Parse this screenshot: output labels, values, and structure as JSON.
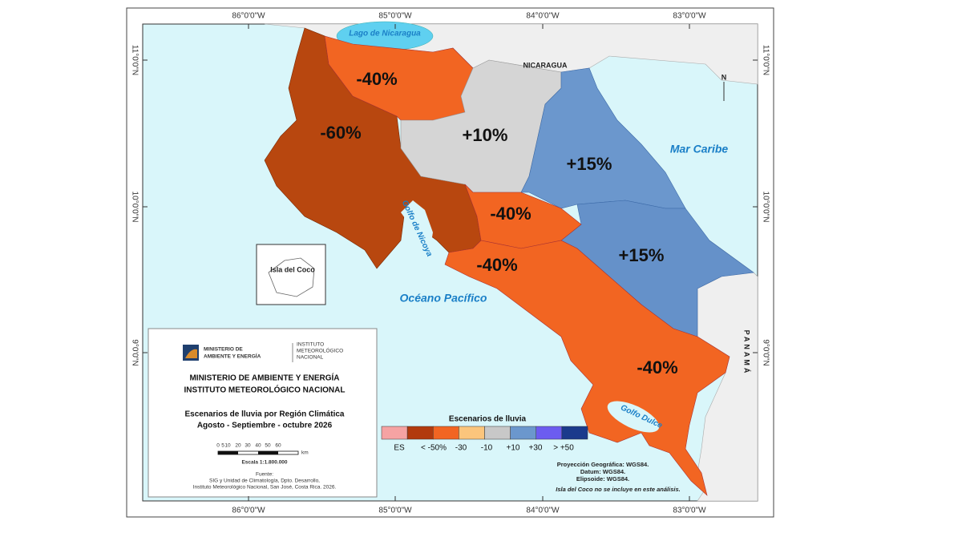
{
  "map": {
    "longitude_labels": [
      "86°0'0\"W",
      "85°0'0\"W",
      "84°0'0\"W",
      "83°0'0\"W"
    ],
    "latitude_labels": [
      "11°0'0\"N",
      "10°0'0\"N",
      "9°0'0\"N"
    ],
    "places": {
      "lake": "Lago de Nicaragua",
      "nicaragua": "NICARAGUA",
      "caribbean": "Mar Caribe",
      "nicoya": "Golfo de Nicoya",
      "pacific": "Océano Pacífico",
      "dulce": "Golfo Dulce",
      "coco": "Isla del Coco",
      "panama": "PANAMÁ",
      "north": "N"
    },
    "regions": [
      "-40%",
      "-60%",
      "+10%",
      "+15%",
      "-40%",
      "+15%",
      "-40%",
      "-40%"
    ]
  },
  "info_box": {
    "logo_left": [
      "MINISTERIO DE",
      "AMBIENTE Y ENERGÍA"
    ],
    "logo_right": [
      "INSTITUTO",
      "METEOROLÓGICO",
      "NACIONAL"
    ],
    "org_lines": [
      "MINISTERIO DE AMBIENTE Y ENERGÍA",
      "INSTITUTO METEOROLÓGICO NACIONAL"
    ],
    "title_lines": [
      "Escenarios de lluvia por Región Climática",
      "Agosto - Septiembre - octubre 2026"
    ],
    "scale_ticks": [
      "0",
      "5",
      "10",
      "20",
      "30",
      "40",
      "50",
      "60"
    ],
    "scale_unit": "km",
    "scale_text": "Escala 1:1.800.000",
    "source_lines": [
      "Fuente:",
      "SIG y Unidad de Climatología, Dpto. Desarrollo,",
      "Instituto Meteorológico Nacional, San José, Costa Rica. 2026."
    ]
  },
  "legend": {
    "title": "Escenarios de lluvia",
    "labels": [
      "ES",
      "< -50%",
      "-30",
      "-10",
      "+10",
      "+30",
      "> +50"
    ]
  },
  "notes": [
    "Proyección Geográfica: WGS84.",
    "Datum: WGS84.",
    "Elipsoide: WGS84.",
    "Isla del Coco no se incluye en este análisis."
  ]
}
